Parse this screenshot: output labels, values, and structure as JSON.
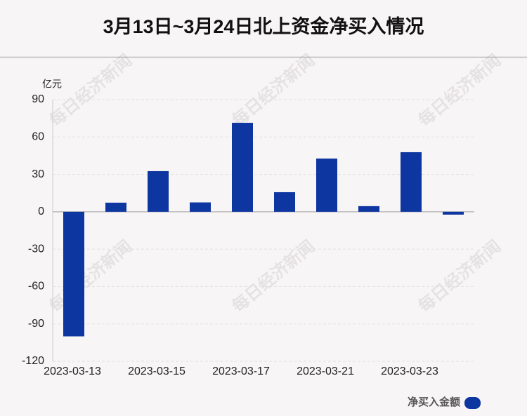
{
  "chart_data": {
    "type": "bar",
    "title": "3月13日~3月24日北上资金净买入情况",
    "y_unit": "亿元",
    "watermark": "每日经济新闻",
    "categories": [
      "2023-03-13",
      null,
      "2023-03-15",
      null,
      "2023-03-17",
      null,
      "2023-03-21",
      null,
      "2023-03-23",
      null
    ],
    "series": [
      {
        "name": "净买入金额",
        "color": "#0d36a0",
        "values": [
          -100,
          7.3,
          32.6,
          7.5,
          71.4,
          15.7,
          42.7,
          4.5,
          47.8,
          -2.3
        ]
      }
    ],
    "ylim": [
      -120,
      90
    ],
    "yticks": [
      -120,
      -90,
      -60,
      -30,
      0,
      30,
      60,
      90
    ],
    "grid": true,
    "legend": "bottom-right"
  }
}
